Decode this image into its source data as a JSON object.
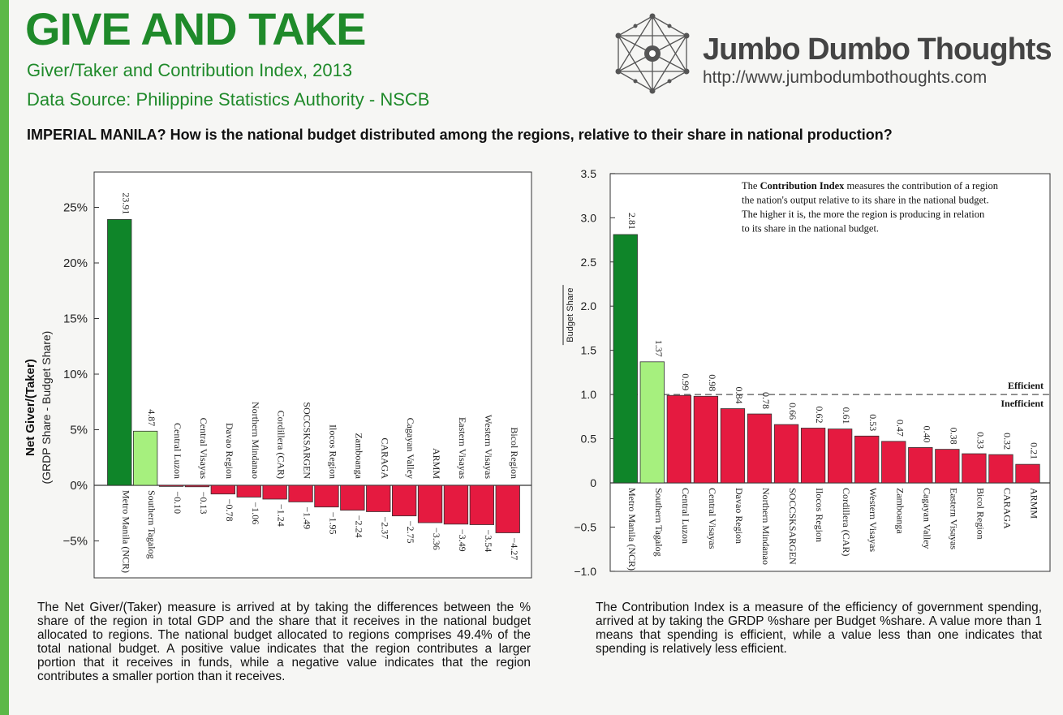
{
  "header": {
    "title": "GIVE AND TAKE",
    "subtitle": "Giver/Taker and Contribution Index, 2013",
    "source": "Data Source: Philippine Statistics Authority - NSCB",
    "question": "IMPERIAL MANILA? How is the national budget distributed among the regions, relative to their share in national production?"
  },
  "brand": {
    "name": "Jumbo Dumbo Thoughts",
    "url": "http://www.jumbodumbothoughts.com"
  },
  "colors": {
    "giver_dark": "#0f8529",
    "giver_light": "#a6f07e",
    "taker": "#e51a40",
    "accent": "#1f8a2a"
  },
  "chart_data": [
    {
      "type": "bar",
      "ylabel": "Net Giver/(Taker)",
      "ylabel_sub": "(GRDP Share - Budget Share)",
      "yticks": [
        "25%",
        "20%",
        "15%",
        "10%",
        "5%",
        "0%",
        "−5%"
      ],
      "ylim": [
        -8,
        28
      ],
      "categories": [
        "Metro Manila (NCR)",
        "Southern Tagalog",
        "Central Luzon",
        "Central Visayas",
        "Davao Region",
        "Northern Mindanao",
        "Cordillera (CAR)",
        "SOCCSKSARGEN",
        "Ilocos Region",
        "Zamboanga",
        "CARAGA",
        "Cagayan Valley",
        "ARMM",
        "Eastern Visayas",
        "Western Visayas",
        "Bicol Region"
      ],
      "values": [
        23.91,
        4.87,
        -0.1,
        -0.13,
        -0.78,
        -1.06,
        -1.24,
        -1.49,
        -1.95,
        -2.24,
        -2.37,
        -2.75,
        -3.36,
        -3.49,
        -3.54,
        -4.27
      ],
      "value_labels": [
        "23.91",
        "4.87",
        "−0.10",
        "−0.13",
        "−0.78",
        "−1.06",
        "−1.24",
        "−1.49",
        "−1.95",
        "−2.24",
        "−2.37",
        "−2.75",
        "−3.36",
        "−3.49",
        "−3.54",
        "−4.27"
      ]
    },
    {
      "type": "bar",
      "ylabel": "Contribution Index",
      "ylabel_num": "GRDP Share",
      "ylabel_den": "Budget Share",
      "yticks": [
        "3.5",
        "3.0",
        "2.5",
        "2.0",
        "1.5",
        "1.0",
        "0.5",
        "0",
        "−0.5",
        "−1.0"
      ],
      "ylim": [
        -1.0,
        3.5
      ],
      "reference_line": 1.0,
      "reference_labels": [
        "Efficient",
        "Inefficient"
      ],
      "note_bold": "Contribution Index",
      "note_lines": [
        "The Contribution Index measures the contribution of a region",
        "the nation's output relative to its share in the national budget.",
        "The higher it is, the more the region is producing in relation",
        "to its share in the national budget."
      ],
      "categories": [
        "Metro Manila (NCR)",
        "Southern Tagalog",
        "Central Luzon",
        "Central Visayas",
        "Davao Region",
        "Northern Mindanao",
        "SOCCSKSARGEN",
        "Ilocos Region",
        "Cordillera (CAR)",
        "Western Visayas",
        "Zamboanga",
        "Cagayan Valley",
        "Eastern Visayas",
        "Bicol Region",
        "CARAGA",
        "ARMM"
      ],
      "values": [
        2.81,
        1.37,
        0.99,
        0.98,
        0.84,
        0.78,
        0.66,
        0.62,
        0.61,
        0.53,
        0.47,
        0.4,
        0.38,
        0.33,
        0.32,
        0.21
      ],
      "value_labels": [
        "2.81",
        "1.37",
        "0.99",
        "0.98",
        "0.84",
        "0.78",
        "0.66",
        "0.62",
        "0.61",
        "0.53",
        "0.47",
        "0.40",
        "0.38",
        "0.33",
        "0.32",
        "0.21"
      ]
    }
  ],
  "descriptions": {
    "left": "The Net Giver/(Taker) measure is arrived at by taking the differences between the % share of the region in total GDP and the share that it receives in the national budget allocated to regions. The national budget allocated to regions comprises 49.4% of the total national budget. A positive value indicates that the region contributes a larger portion that it receives in funds, while a negative value indicates that the region contributes a smaller portion than it receives.",
    "right": "The Contribution Index is a measure of the efficiency of government spending, arrived at by taking the GRDP %share per Budget %share. A value more than 1 means that spending is efficient, while a value less than one indicates that spending is relatively less efficient."
  }
}
